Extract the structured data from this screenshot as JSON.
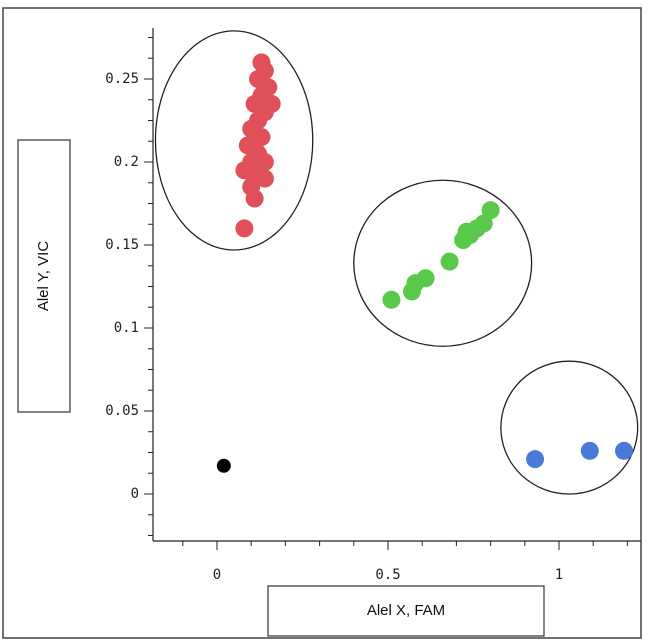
{
  "chart_data": {
    "type": "scatter",
    "xlabel": "Alel X, FAM",
    "ylabel": "Alel Y, VIC",
    "xlim": [
      -0.2,
      1.23
    ],
    "ylim": [
      -0.03,
      0.285
    ],
    "x_ticks": [
      {
        "value": 0,
        "label": "0"
      },
      {
        "value": 0.5,
        "label": "0.5"
      },
      {
        "value": 1,
        "label": "1"
      }
    ],
    "y_ticks": [
      {
        "value": 0,
        "label": "0"
      },
      {
        "value": 0.05,
        "label": "0.05"
      },
      {
        "value": 0.1,
        "label": "0.1"
      },
      {
        "value": 0.15,
        "label": "0.15"
      },
      {
        "value": 0.2,
        "label": "0.2"
      },
      {
        "value": 0.25,
        "label": "0.25"
      }
    ],
    "series": [
      {
        "color": "#e0505a",
        "points": [
          [
            0.13,
            0.26
          ],
          [
            0.14,
            0.255
          ],
          [
            0.12,
            0.25
          ],
          [
            0.15,
            0.245
          ],
          [
            0.13,
            0.24
          ],
          [
            0.16,
            0.235
          ],
          [
            0.11,
            0.235
          ],
          [
            0.14,
            0.23
          ],
          [
            0.12,
            0.225
          ],
          [
            0.1,
            0.22
          ],
          [
            0.13,
            0.215
          ],
          [
            0.11,
            0.21
          ],
          [
            0.09,
            0.21
          ],
          [
            0.12,
            0.205
          ],
          [
            0.14,
            0.2
          ],
          [
            0.1,
            0.2
          ],
          [
            0.12,
            0.195
          ],
          [
            0.08,
            0.195
          ],
          [
            0.11,
            0.19
          ],
          [
            0.14,
            0.19
          ],
          [
            0.1,
            0.185
          ],
          [
            0.11,
            0.178
          ],
          [
            0.08,
            0.16
          ]
        ]
      },
      {
        "color": "#5ac84a",
        "points": [
          [
            0.51,
            0.117
          ],
          [
            0.57,
            0.122
          ],
          [
            0.58,
            0.127
          ],
          [
            0.61,
            0.13
          ],
          [
            0.68,
            0.14
          ],
          [
            0.72,
            0.153
          ],
          [
            0.74,
            0.156
          ],
          [
            0.76,
            0.16
          ],
          [
            0.78,
            0.163
          ],
          [
            0.8,
            0.171
          ],
          [
            0.73,
            0.158
          ]
        ]
      },
      {
        "color": "#4a7ad8",
        "points": [
          [
            0.93,
            0.021
          ],
          [
            1.09,
            0.026
          ],
          [
            1.19,
            0.026
          ]
        ]
      },
      {
        "color": "#000000",
        "points": [
          [
            0.02,
            0.017
          ]
        ]
      }
    ],
    "clusters": [
      {
        "cx": 0.05,
        "cy": 0.213,
        "rx": 0.23,
        "ry": 0.066
      },
      {
        "cx": 0.66,
        "cy": 0.139,
        "rx": 0.26,
        "ry": 0.05
      },
      {
        "cx": 1.03,
        "cy": 0.04,
        "rx": 0.2,
        "ry": 0.04
      }
    ]
  }
}
